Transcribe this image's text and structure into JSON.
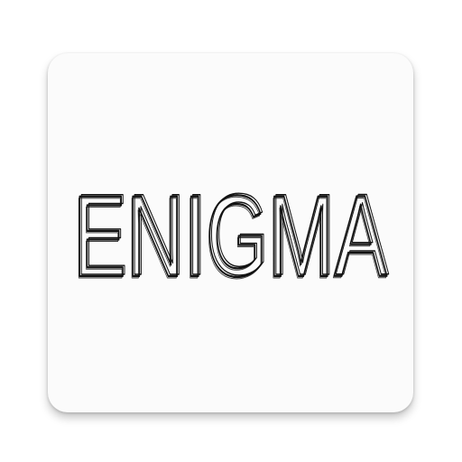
{
  "app_icon": {
    "logo_text": "ENIGMA",
    "background_color": "#fbfbfb",
    "ink_color": "#111111"
  }
}
